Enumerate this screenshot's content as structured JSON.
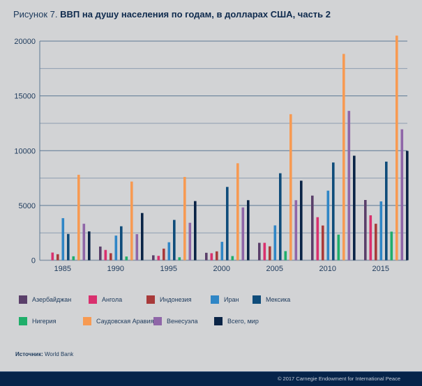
{
  "title": {
    "prefix": "Рисунок 7.",
    "main": "ВВП на душу населения по годам, в долларах США, часть 2"
  },
  "source": {
    "label": "Источник:",
    "value": "World Bank"
  },
  "footer": {
    "copyright": "© 2017 Carnegie Endowment for International Peace"
  },
  "chart_data": {
    "type": "bar",
    "title": "ВВП на душу населения по годам, в долларах США, часть 2",
    "xlabel": "",
    "ylabel": "",
    "categories": [
      "1985",
      "1990",
      "1995",
      "2000",
      "2005",
      "2010",
      "2015"
    ],
    "ylim": [
      0,
      20000
    ],
    "yticks": [
      0,
      5000,
      10000,
      15000,
      20000
    ],
    "minor_gridlines": [
      2500,
      7500,
      12500,
      17500
    ],
    "grid": true,
    "legend_position": "bottom",
    "series": [
      {
        "name": "Азербайджан",
        "color": "#5a3f6a",
        "values": [
          null,
          1250,
          450,
          680,
          1590,
          5900,
          5500
        ]
      },
      {
        "name": "Ангола",
        "color": "#d9306e",
        "values": [
          700,
          940,
          400,
          640,
          1590,
          3930,
          4100
        ]
      },
      {
        "name": "Индонезия",
        "color": "#a83a3a",
        "values": [
          550,
          640,
          1060,
          810,
          1270,
          3170,
          3330
        ]
      },
      {
        "name": "Иран",
        "color": "#2f86c6",
        "values": [
          3840,
          2250,
          1640,
          1680,
          3180,
          6350,
          5370
        ]
      },
      {
        "name": "Мексика",
        "color": "#0f4c7a",
        "values": [
          2400,
          3100,
          3680,
          6690,
          7940,
          8920,
          9000
        ]
      },
      {
        "name": "Нигерия",
        "color": "#1fae6a",
        "values": [
          360,
          340,
          270,
          380,
          830,
          2340,
          2610
        ]
      },
      {
        "name": "Саудовская Аравия",
        "color": "#f79a52",
        "values": [
          7800,
          7180,
          7600,
          8850,
          13330,
          18830,
          20500
        ]
      },
      {
        "name": "Венесуэла",
        "color": "#8f66a8",
        "values": [
          3330,
          2380,
          3420,
          4820,
          5480,
          13630,
          11950
        ]
      },
      {
        "name": "Всего, мир",
        "color": "#0a2446",
        "values": [
          2630,
          4310,
          5400,
          5480,
          7260,
          9540,
          9980
        ]
      }
    ]
  }
}
